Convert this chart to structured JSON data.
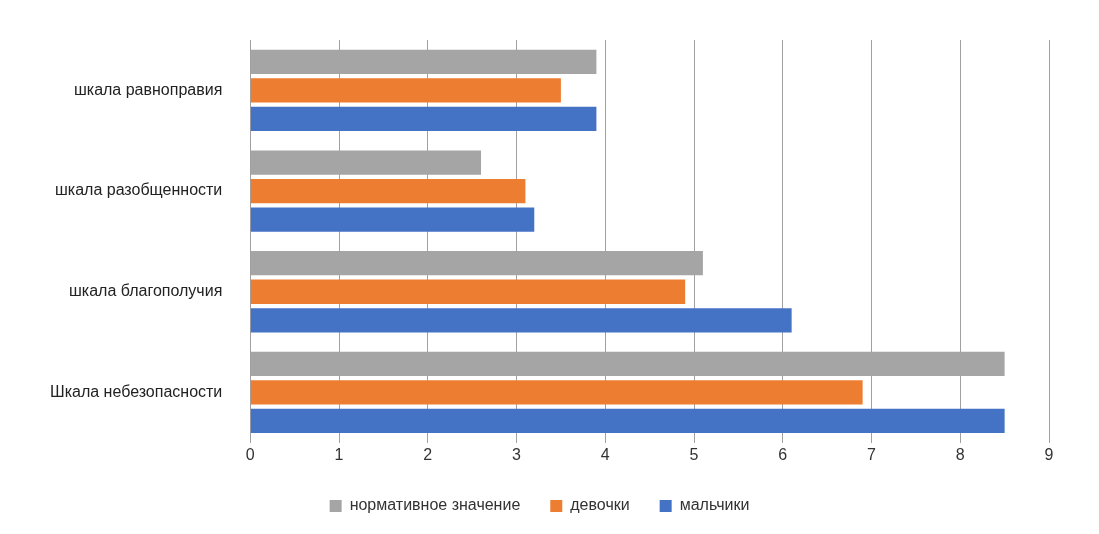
{
  "chart_data": {
    "type": "bar",
    "orientation": "horizontal",
    "categories": [
      "шкала равноправия",
      "шкала разобщенности",
      "шкала благополучия",
      "Шкала небезопасности"
    ],
    "series": [
      {
        "name": "нормативное значение",
        "color": "#a5a5a5",
        "values": [
          3.9,
          2.6,
          5.1,
          8.5
        ]
      },
      {
        "name": "девочки",
        "color": "#ed7d31",
        "values": [
          3.5,
          3.1,
          4.9,
          6.9
        ]
      },
      {
        "name": "мальчики",
        "color": "#4472c4",
        "values": [
          3.9,
          3.2,
          6.1,
          8.5
        ]
      }
    ],
    "xlim": [
      0,
      9
    ],
    "xticks": [
      0,
      1,
      2,
      3,
      4,
      5,
      6,
      7,
      8,
      9
    ],
    "grid": "x",
    "legend": "bottom"
  }
}
